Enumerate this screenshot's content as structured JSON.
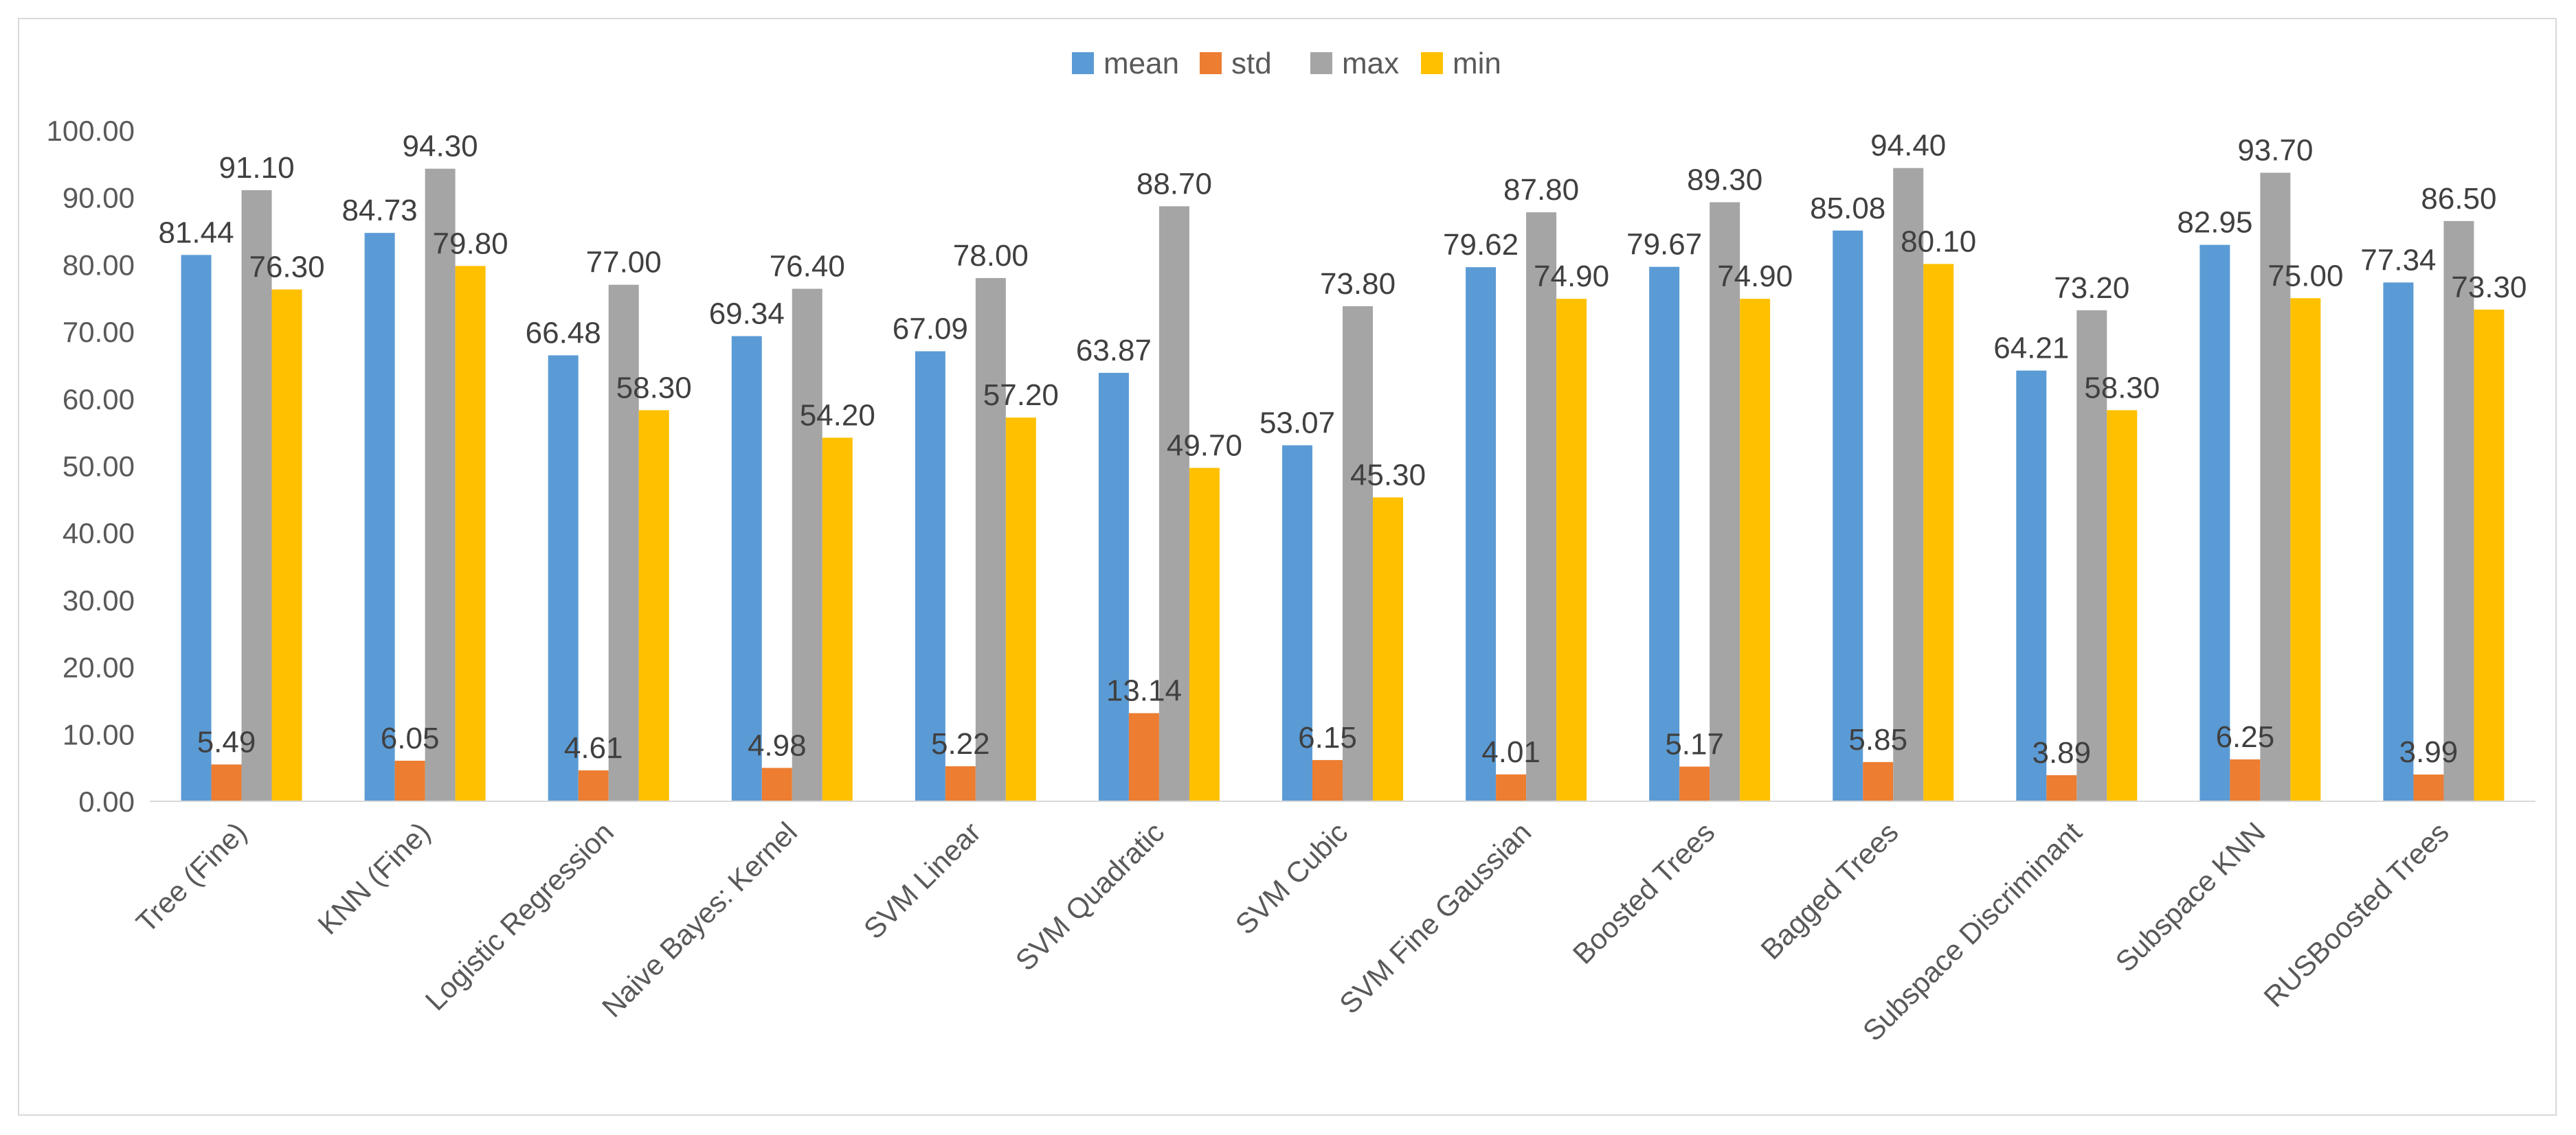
{
  "chart_data": {
    "type": "bar",
    "title": "",
    "xlabel": "",
    "ylabel": "",
    "ylim": [
      0,
      100
    ],
    "ytick_step": 10,
    "ytick_format_decimals": 2,
    "grid": false,
    "legend_position": "top-center",
    "categories": [
      "Tree (Fine)",
      "KNN (Fine)",
      "Logistic Regression",
      "Naive Bayes: Kernel",
      "SVM Linear",
      "SVM Quadratic",
      "SVM Cubic",
      "SVM Fine Gaussian",
      "Boosted Trees",
      "Bagged Trees",
      "Subspace Discriminant",
      "Subspace KNN",
      "RUSBoosted Trees"
    ],
    "series": [
      {
        "name": "mean",
        "color": "#5b9bd5",
        "values": [
          81.44,
          84.73,
          66.48,
          69.34,
          67.09,
          63.87,
          53.07,
          79.62,
          79.67,
          85.08,
          64.21,
          82.95,
          77.34
        ]
      },
      {
        "name": "std",
        "color": "#ed7d31",
        "values": [
          5.49,
          6.05,
          4.61,
          4.98,
          5.22,
          13.14,
          6.15,
          4.01,
          5.17,
          5.85,
          3.89,
          6.25,
          3.99
        ]
      },
      {
        "name": "max",
        "color": "#a5a5a5",
        "values": [
          91.1,
          94.3,
          77.0,
          76.4,
          78.0,
          88.7,
          73.8,
          87.8,
          89.3,
          94.4,
          73.2,
          93.7,
          86.5
        ]
      },
      {
        "name": "min",
        "color": "#ffc000",
        "values": [
          76.3,
          79.8,
          58.3,
          54.2,
          57.2,
          49.7,
          45.3,
          74.9,
          74.9,
          80.1,
          58.3,
          75.0,
          73.3
        ]
      }
    ]
  }
}
